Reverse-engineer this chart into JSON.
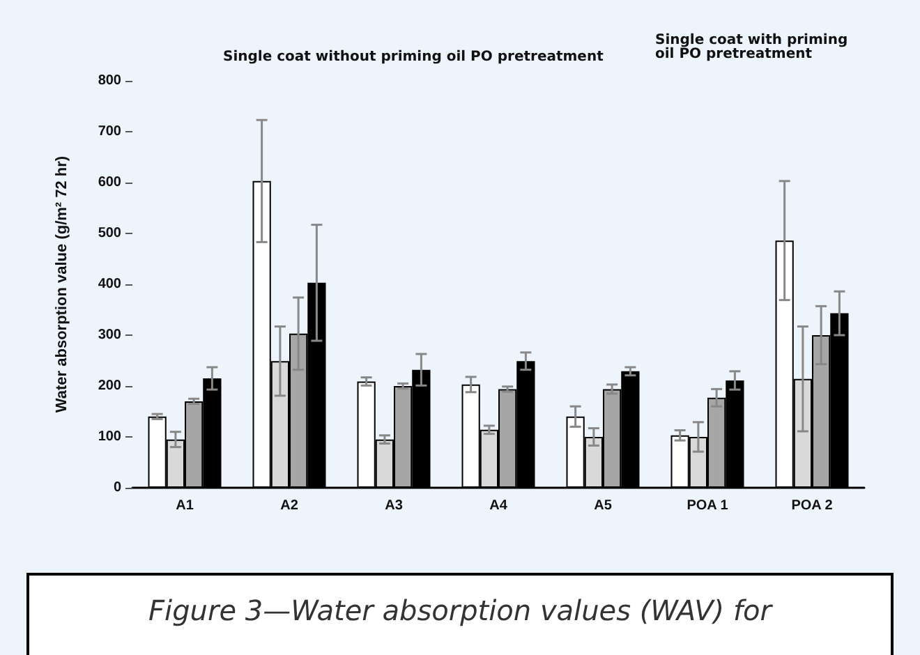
{
  "chart_data": {
    "type": "bar",
    "ylabel": "Water absorption value (g/m² 72 hr)",
    "categories": [
      "A1",
      "A2",
      "A3",
      "A4",
      "A5",
      "POA 1",
      "POA 2"
    ],
    "series": [
      {
        "color": "#ffffff",
        "values": [
          140,
          603,
          209,
          203,
          140,
          103,
          486
        ],
        "errors": [
          5,
          120,
          8,
          15,
          20,
          10,
          117
        ]
      },
      {
        "color": "#d9d9d9",
        "values": [
          95,
          249,
          95,
          114,
          100,
          100,
          214
        ],
        "errors": [
          15,
          68,
          8,
          8,
          17,
          29,
          103
        ]
      },
      {
        "color": "#a6a6a6",
        "values": [
          170,
          303,
          200,
          194,
          194,
          177,
          300
        ],
        "errors": [
          5,
          71,
          5,
          5,
          9,
          17,
          57
        ]
      },
      {
        "color": "#000000",
        "values": [
          215,
          403,
          232,
          249,
          229,
          211,
          343
        ],
        "errors": [
          22,
          114,
          31,
          17,
          8,
          18,
          43
        ]
      }
    ],
    "ylim": [
      0,
      800
    ],
    "yticks": [
      0,
      100,
      200,
      300,
      400,
      500,
      600,
      700,
      800
    ],
    "annotations": [
      "Single coat without priming oil PO pretreatment",
      "Single coat with priming oil PO pretreatment",
      "Figure 3—Water absorption values (WAV) for"
    ]
  }
}
